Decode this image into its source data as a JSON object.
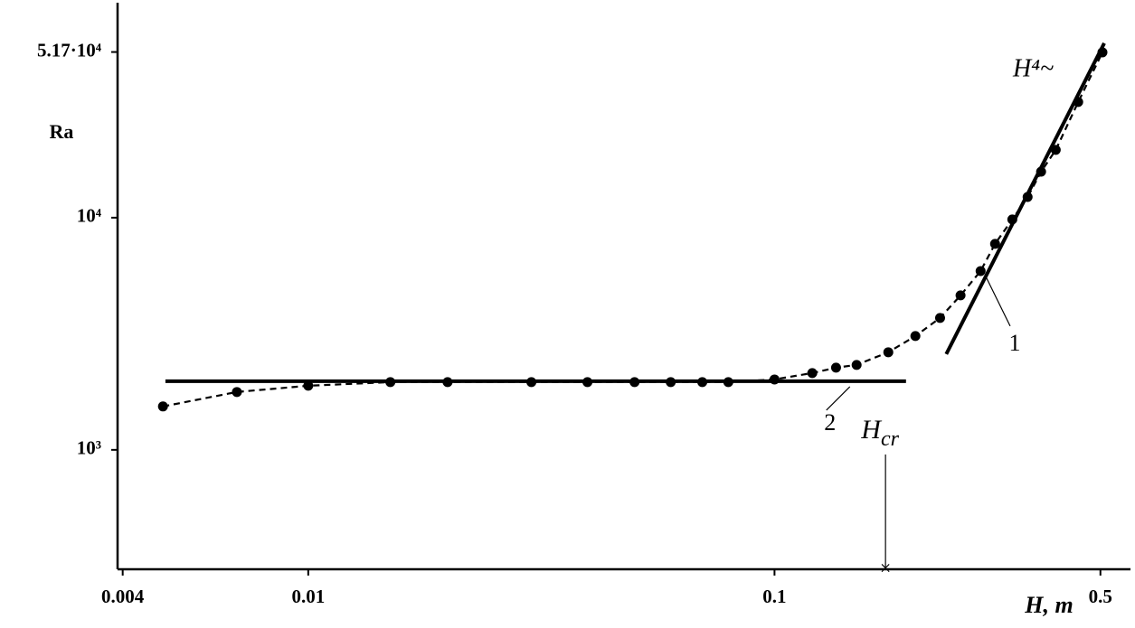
{
  "chart_data": {
    "type": "line",
    "ylabel": "Ra",
    "xlabel": "H, m",
    "log_x": true,
    "log_y": true,
    "xlim": [
      0.0039,
      0.58
    ],
    "ylim": [
      306,
      82800
    ],
    "xticks": [
      0.004,
      0.01,
      0.1,
      0.5
    ],
    "yticks": [
      {
        "value": 1000,
        "label": "10³"
      },
      {
        "value": 10000,
        "label": "10⁴"
      },
      {
        "value": 51700,
        "label": "5.17·10⁴"
      }
    ],
    "series": [
      {
        "color": "#000000",
        "style": "dashed-markers",
        "x": [
          0.00488,
          0.00703,
          0.01,
          0.015,
          0.0199,
          0.0301,
          0.0397,
          0.0501,
          0.0599,
          0.07,
          0.0796,
          0.1,
          0.1205,
          0.1355,
          0.15,
          0.1754,
          0.2005,
          0.2265,
          0.2506,
          0.2767,
          0.2972,
          0.3236,
          0.349,
          0.373,
          0.401,
          0.448,
          0.505
        ],
        "values": [
          1538,
          1775,
          1889,
          1958,
          1958,
          1958,
          1958,
          1958,
          1958,
          1958,
          1958,
          2010,
          2142,
          2259,
          2322,
          2633,
          3092,
          3700,
          4627,
          5891,
          7715,
          9820,
          12280,
          15780,
          19590,
          31480,
          51520
        ]
      },
      {
        "name": "1",
        "color": "#000000",
        "style": "solid",
        "x": [
          0.2335,
          0.5096
        ],
        "values": [
          2585,
          56400
        ]
      },
      {
        "name": "2",
        "color": "#000000",
        "style": "solid",
        "x": [
          0.00494,
          0.1914
        ],
        "values": [
          1975,
          1975
        ]
      }
    ],
    "annotations": [
      {
        "text": "H⁴~"
      },
      {
        "text": "H",
        "sub": "cr",
        "x": 0.173
      }
    ]
  }
}
